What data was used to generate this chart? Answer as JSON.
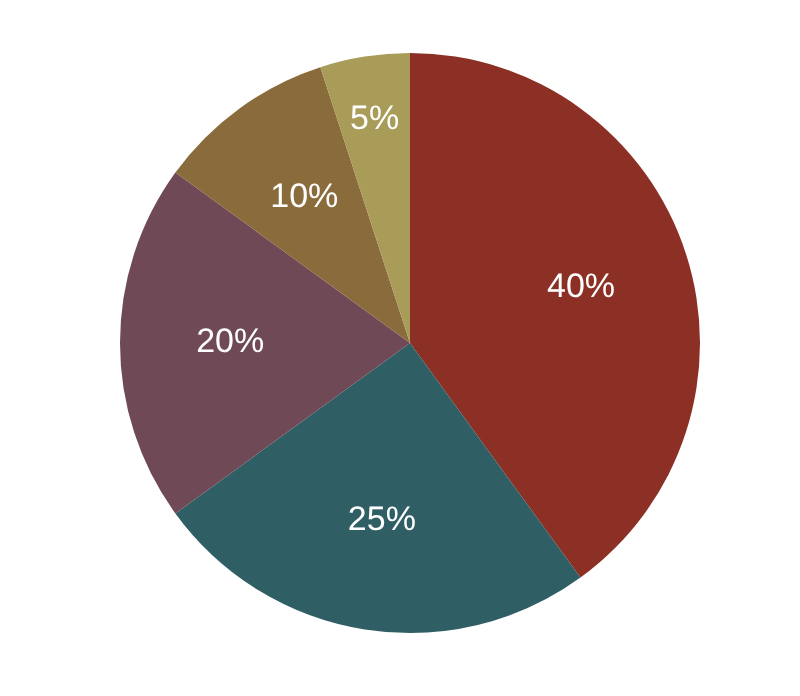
{
  "chart_data": {
    "type": "pie",
    "categories": [
      null,
      null,
      null,
      null,
      null
    ],
    "values": [
      40,
      25,
      20,
      10,
      5
    ],
    "value_labels": [
      "40%",
      "25%",
      "20%",
      "10%",
      "5%"
    ],
    "colors": [
      "#8c2f24",
      "#2f5f64",
      "#6f4a56",
      "#8a6b3c",
      "#a99b58"
    ],
    "legend": false
  }
}
